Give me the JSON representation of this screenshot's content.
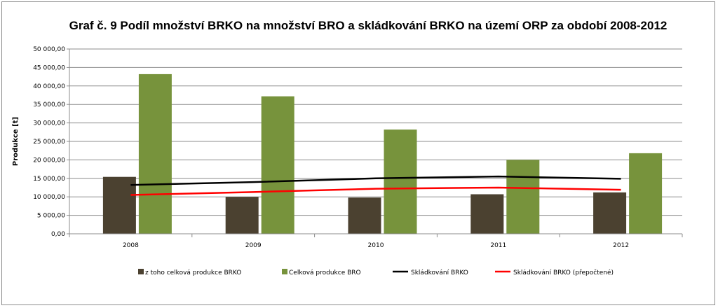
{
  "chart_data": {
    "type": "bar",
    "title": "Graf č. 9 Podíl množství BRKO na množství BRO a skládkování BRKO na území ORP za období 2008-2012",
    "ylabel": "Produkce [t]",
    "xlabel": "",
    "categories": [
      "2008",
      "2009",
      "2010",
      "2011",
      "2012"
    ],
    "ylim": [
      0,
      50000
    ],
    "yticks": [
      0,
      5000,
      10000,
      15000,
      20000,
      25000,
      30000,
      35000,
      40000,
      45000,
      50000
    ],
    "ytick_labels": [
      "0,00",
      "5 000,00",
      "10 000,00",
      "15 000,00",
      "20 000,00",
      "25 000,00",
      "30 000,00",
      "35 000,00",
      "40 000,00",
      "45 000,00",
      "50 000,00"
    ],
    "grid": true,
    "legend_position": "bottom",
    "series": [
      {
        "name": "z toho celková produkce BRKO",
        "kind": "bar",
        "color": "#4b4130",
        "values": [
          15400,
          10000,
          9800,
          10700,
          11200
        ]
      },
      {
        "name": "Celková produkce BRO",
        "kind": "bar",
        "color": "#77933c",
        "values": [
          43200,
          37200,
          28200,
          20000,
          21800
        ]
      },
      {
        "name": "Skládkování BRKO",
        "kind": "line",
        "color": "#000000",
        "values": [
          13200,
          14000,
          15000,
          15500,
          14900
        ]
      },
      {
        "name": "Skládkování BRKO (přepočtené)",
        "kind": "line",
        "color": "#ff0000",
        "values": [
          10500,
          11300,
          12200,
          12500,
          11900
        ]
      }
    ]
  }
}
